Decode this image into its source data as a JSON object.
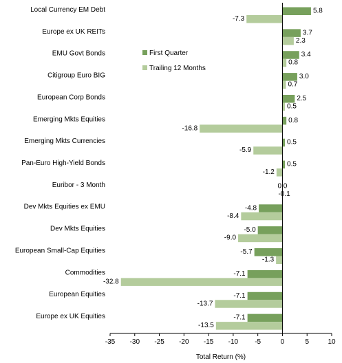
{
  "chart_data": {
    "type": "bar",
    "orientation": "horizontal",
    "xlabel": "Total Return (%)",
    "xlim": [
      -35,
      10
    ],
    "xticks": [
      -35,
      -30,
      -25,
      -20,
      -15,
      -10,
      -5,
      0,
      5,
      10
    ],
    "grid": false,
    "legend_position": "upper-middle",
    "categories": [
      "Local Currency EM Debt",
      "Europe ex UK REITs",
      "EMU Govt Bonds",
      "Citigroup Euro BIG",
      "European Corp Bonds",
      "Emerging Mkts Equities",
      "Emerging Mkts Currencies",
      "Pan-Euro High-Yield Bonds",
      "Euribor - 3 Month",
      "Dev Mkts Equities ex EMU",
      "Dev Mkts Equities",
      "European Small-Cap Equities",
      "Commodities",
      "European Equities",
      "Europe ex UK Equities"
    ],
    "series": [
      {
        "name": "First Quarter",
        "color": "#77a05c",
        "values": [
          5.8,
          3.7,
          3.4,
          3.0,
          2.5,
          0.8,
          0.5,
          0.5,
          0.0,
          -4.8,
          -5.0,
          -5.7,
          -7.1,
          -7.1,
          -7.1
        ],
        "labels": [
          "5.8",
          "3.7",
          "3.4",
          "3.0",
          "2.5",
          "0.8",
          "0.5",
          "0.5",
          "0.0",
          "-4.8",
          "-5.0",
          "-5.7",
          "-7.1",
          "-7.1",
          "-7.1"
        ]
      },
      {
        "name": "Trailing 12 Months",
        "color": "#b4cc9c",
        "values": [
          -7.3,
          2.3,
          0.8,
          0.7,
          0.5,
          -16.8,
          -5.9,
          -1.2,
          -0.1,
          -8.4,
          -9.0,
          -1.3,
          -32.8,
          -13.7,
          -13.5
        ],
        "labels": [
          "-7.3",
          "2.3",
          "0.8",
          "0.7",
          "0.5",
          "-16.8",
          "-5.9",
          "-1.2",
          "-0.1",
          "-8.4",
          "-9.0",
          "-1.3",
          "-32.8",
          "-13.7",
          "-13.5"
        ]
      }
    ]
  }
}
